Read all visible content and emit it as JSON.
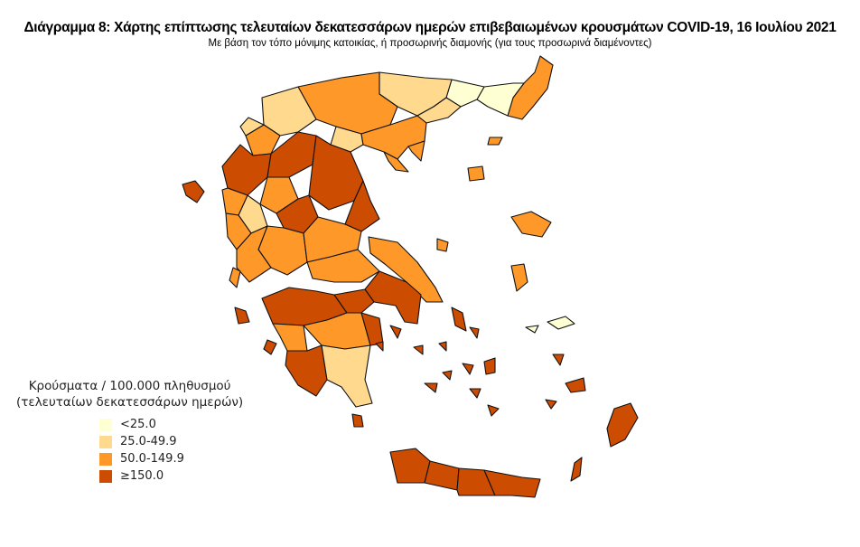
{
  "title": "Διάγραμμα 8: Χάρτης επίπτωσης τελευταίων δεκατεσσάρων ημερών επιβεβαιωμένων κρουσμάτων COVID-19, 16 Ιουλίου 2021",
  "subtitle": "Με βάση τον τόπο μόνιμης κατοικίας, ή προσωρινής διαμονής (για τους προσωρινά διαμένοντες)",
  "legend": {
    "title_line1": "Κρούσματα / 100.000 πληθυσμού",
    "title_line2": "(τελευταίων δεκατεσσάρων ημερών)",
    "classes": [
      {
        "label": "<25.0",
        "color": "#ffffd4"
      },
      {
        "label": "25.0-49.9",
        "color": "#fed98e"
      },
      {
        "label": "50.0-149.9",
        "color": "#fe9929"
      },
      {
        "label": "≥150.0",
        "color": "#cc4c02"
      }
    ]
  }
}
